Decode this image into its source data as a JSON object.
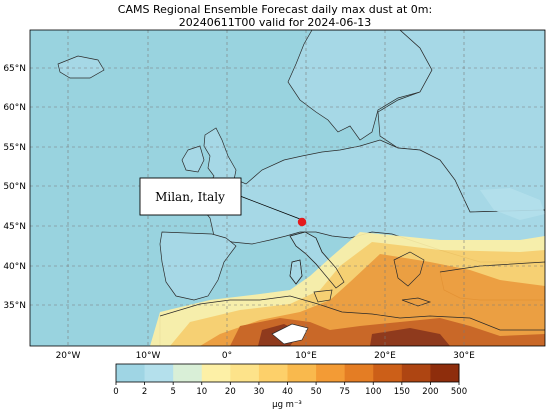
{
  "title": {
    "line1": "CAMS Regional Ensemble Forecast daily max dust at 0m:",
    "line2": "20240611T00 valid for 2024-06-13"
  },
  "map": {
    "lat_labels": [
      "65°N",
      "60°N",
      "55°N",
      "50°N",
      "45°N",
      "40°N",
      "35°N"
    ],
    "lon_labels": [
      "20°W",
      "10°W",
      "0°",
      "10°E",
      "20°E",
      "30°E"
    ],
    "ocean_color": "#99d3df",
    "land_clean_color": "#a6d8e6",
    "gridline_style": "dashed"
  },
  "annotation": {
    "label": "Milan, Italy",
    "marker_color": "#e41a1c"
  },
  "colorbar": {
    "ticks": [
      "0",
      "2",
      "5",
      "10",
      "20",
      "30",
      "40",
      "50",
      "75",
      "100",
      "150",
      "200",
      "500"
    ],
    "colors": [
      "#9fd5e4",
      "#b4e0ec",
      "#d9efd7",
      "#fdf0a6",
      "#fde38a",
      "#fdd06a",
      "#f9b94d",
      "#f39b35",
      "#e47d24",
      "#cc5f18",
      "#ae4512",
      "#8e2d0c"
    ],
    "unit_label": "µg m⁻³"
  }
}
